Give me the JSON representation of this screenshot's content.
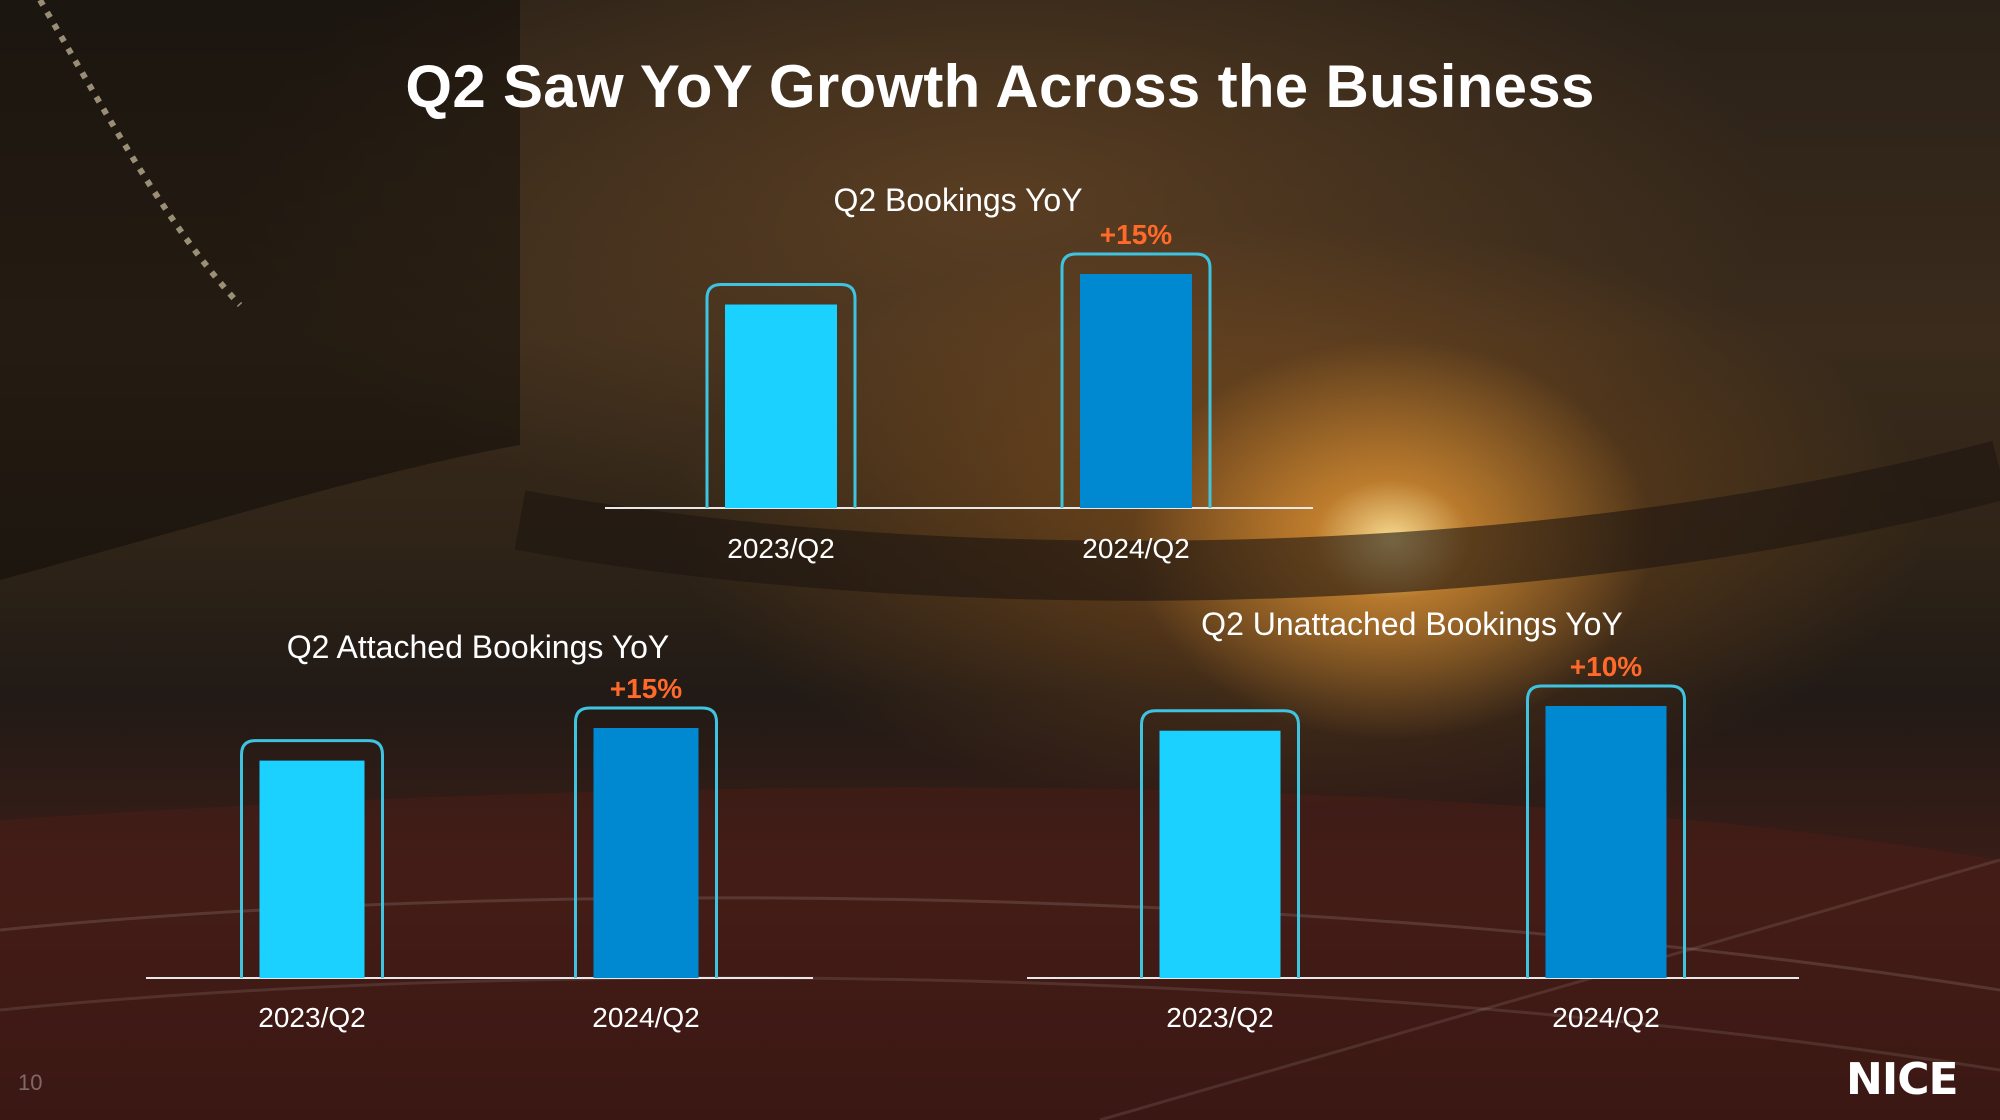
{
  "slide": {
    "title": "Q2 Saw YoY Growth Across the Business",
    "page_number": "10",
    "logo_text": "NICE"
  },
  "colors": {
    "bar_prior": "#1ad1ff",
    "bar_current": "#0088d1",
    "frame": "#3ec3e0",
    "growth_label": "#ff6a2a"
  },
  "chart_data": [
    {
      "type": "bar",
      "title": "Q2 Bookings YoY",
      "categories": [
        "2023/Q2",
        "2024/Q2"
      ],
      "values": [
        100,
        115
      ],
      "growth_label": "+15%",
      "ylim": [
        0,
        115
      ]
    },
    {
      "type": "bar",
      "title": "Q2 Attached Bookings YoY",
      "categories": [
        "2023/Q2",
        "2024/Q2"
      ],
      "values": [
        100,
        115
      ],
      "growth_label": "+15%",
      "ylim": [
        0,
        115
      ]
    },
    {
      "type": "bar",
      "title": "Q2 Unattached Bookings YoY",
      "categories": [
        "2023/Q2",
        "2024/Q2"
      ],
      "values": [
        100,
        110
      ],
      "growth_label": "+10%",
      "ylim": [
        0,
        110
      ]
    }
  ]
}
